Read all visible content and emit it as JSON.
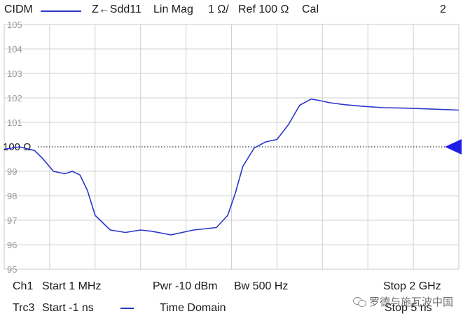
{
  "header": {
    "trace_name": "CIDM",
    "measurement": "Z←Sdd11",
    "format": "Lin Mag",
    "scale": "1 Ω/",
    "reference": "Ref 100 Ω",
    "cal": "Cal",
    "window_number": "2",
    "trace_color": "#2b36c9"
  },
  "chart_data": {
    "type": "line",
    "ylim": [
      95,
      105
    ],
    "yticks": [
      "105",
      "104",
      "103",
      "102",
      "101",
      "100 Ω",
      "99",
      "98",
      "97",
      "96",
      "95"
    ],
    "reference_label": "100 Ω",
    "reference_value": 100,
    "grid": true,
    "x_divisions": 10,
    "xlim": [
      -1,
      5
    ],
    "xunit": "ns",
    "series": [
      {
        "color": "#2b36c9",
        "x": [
          -1.0,
          -0.8,
          -0.6,
          -0.5,
          -0.35,
          -0.2,
          -0.1,
          0.0,
          0.1,
          0.2,
          0.4,
          0.6,
          0.8,
          0.95,
          1.2,
          1.5,
          1.8,
          1.95,
          2.05,
          2.15,
          2.3,
          2.45,
          2.6,
          2.75,
          2.9,
          3.05,
          3.15,
          3.3,
          3.5,
          3.75,
          4.0,
          4.3,
          4.6,
          5.0
        ],
        "y": [
          99.9,
          100.0,
          99.85,
          99.55,
          99.0,
          98.9,
          99.0,
          98.85,
          98.2,
          97.2,
          96.6,
          96.5,
          96.6,
          96.55,
          96.4,
          96.6,
          96.7,
          97.2,
          98.1,
          99.2,
          99.95,
          100.2,
          100.3,
          100.9,
          101.7,
          101.95,
          101.9,
          101.8,
          101.72,
          101.65,
          101.6,
          101.58,
          101.55,
          101.5
        ]
      }
    ]
  },
  "footer": {
    "channel": "Ch1",
    "start": "Start  1 MHz",
    "power": "Pwr  -10 dBm",
    "bandwidth": "Bw  500 Hz",
    "stop": "Stop  2 GHz",
    "trace": "Trc3",
    "trace_start": "Start  -1 ns",
    "domain": "Time  Domain",
    "trace_stop": "Stop  5 ns"
  },
  "watermark": {
    "icon": "wechat-icon",
    "text": "罗德与施瓦波中国"
  }
}
